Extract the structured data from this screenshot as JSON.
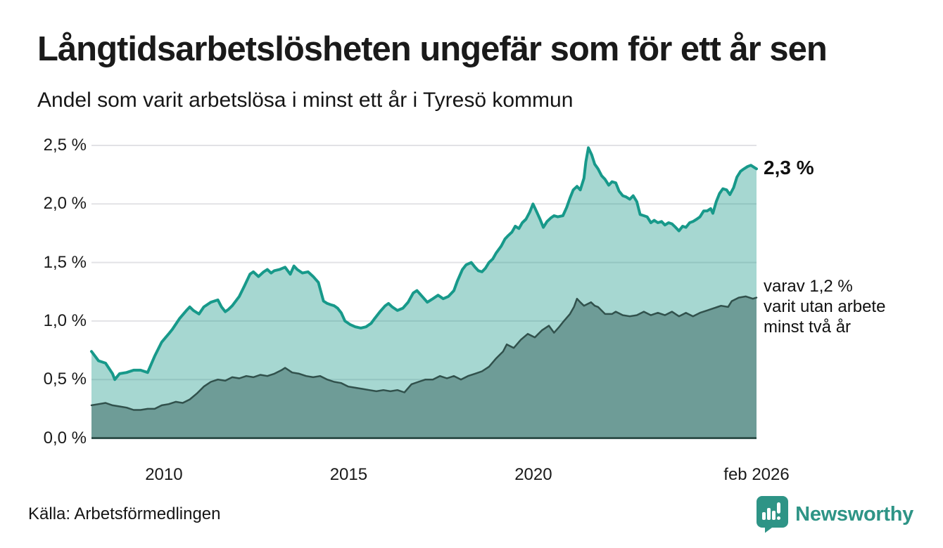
{
  "header": {
    "title": "Långtidsarbetslösheten ungefär som för ett år sen",
    "subtitle": "Andel som varit arbetslösa i minst ett år i Tyresö kommun"
  },
  "annotations": {
    "latest": "2,3 %",
    "secondary_lines": [
      "varav 1,2 %",
      "varit utan arbete",
      "minst två år"
    ]
  },
  "footer": {
    "source": "Källa: Arbetsförmedlingen",
    "brand": "Newsworthy",
    "brand_color": "#2e9486"
  },
  "chart_data": {
    "type": "area",
    "title": "Långtidsarbetslösheten ungefär som för ett år sen",
    "subtitle": "Andel som varit arbetslösa i minst ett år i Tyresö kommun",
    "unit": "%",
    "grid": "horizontal",
    "legend_position": "right-annotations",
    "xlim": [
      2008.04,
      2026.04
    ],
    "ylim": [
      0,
      2.5
    ],
    "y_ticks": [
      {
        "value": 0.0,
        "label": "0,0 %"
      },
      {
        "value": 0.5,
        "label": "0,5 %"
      },
      {
        "value": 1.0,
        "label": "1,0 %"
      },
      {
        "value": 1.5,
        "label": "1,5 %"
      },
      {
        "value": 2.0,
        "label": "2,0 %"
      },
      {
        "value": 2.5,
        "label": "2,5 %"
      }
    ],
    "x_ticks": [
      {
        "value": 2010,
        "label": "2010"
      },
      {
        "value": 2015,
        "label": "2015"
      },
      {
        "value": 2020,
        "label": "2020"
      },
      {
        "value": 2026.04,
        "label": "feb 2026"
      }
    ],
    "gridline_color": "#e2e2e6",
    "series": [
      {
        "name": "minst ett år",
        "end_value": 2.3,
        "end_label": "2,3 %",
        "color": "#17998a",
        "fill": "rgba(21,150,133,0.38)",
        "points": [
          [
            2008.04,
            0.74
          ],
          [
            2008.23,
            0.66
          ],
          [
            2008.42,
            0.64
          ],
          [
            2008.61,
            0.55
          ],
          [
            2008.67,
            0.5
          ],
          [
            2008.8,
            0.55
          ],
          [
            2008.99,
            0.56
          ],
          [
            2009.18,
            0.58
          ],
          [
            2009.37,
            0.58
          ],
          [
            2009.56,
            0.56
          ],
          [
            2009.75,
            0.7
          ],
          [
            2009.94,
            0.82
          ],
          [
            2010.13,
            0.89
          ],
          [
            2010.23,
            0.93
          ],
          [
            2010.42,
            1.02
          ],
          [
            2010.61,
            1.09
          ],
          [
            2010.7,
            1.12
          ],
          [
            2010.8,
            1.09
          ],
          [
            2010.95,
            1.06
          ],
          [
            2011.08,
            1.12
          ],
          [
            2011.27,
            1.16
          ],
          [
            2011.46,
            1.18
          ],
          [
            2011.56,
            1.12
          ],
          [
            2011.66,
            1.08
          ],
          [
            2011.75,
            1.1
          ],
          [
            2011.85,
            1.13
          ],
          [
            2012.04,
            1.21
          ],
          [
            2012.18,
            1.3
          ],
          [
            2012.33,
            1.4
          ],
          [
            2012.42,
            1.42
          ],
          [
            2012.56,
            1.38
          ],
          [
            2012.7,
            1.42
          ],
          [
            2012.8,
            1.44
          ],
          [
            2012.9,
            1.41
          ],
          [
            2012.99,
            1.43
          ],
          [
            2013.13,
            1.44
          ],
          [
            2013.28,
            1.46
          ],
          [
            2013.42,
            1.4
          ],
          [
            2013.52,
            1.47
          ],
          [
            2013.61,
            1.44
          ],
          [
            2013.75,
            1.41
          ],
          [
            2013.9,
            1.42
          ],
          [
            2014.04,
            1.38
          ],
          [
            2014.18,
            1.33
          ],
          [
            2014.32,
            1.17
          ],
          [
            2014.42,
            1.15
          ],
          [
            2014.51,
            1.14
          ],
          [
            2014.61,
            1.13
          ],
          [
            2014.7,
            1.11
          ],
          [
            2014.8,
            1.07
          ],
          [
            2014.9,
            1.0
          ],
          [
            2015.04,
            0.97
          ],
          [
            2015.18,
            0.95
          ],
          [
            2015.33,
            0.94
          ],
          [
            2015.47,
            0.95
          ],
          [
            2015.61,
            0.98
          ],
          [
            2015.7,
            1.02
          ],
          [
            2015.85,
            1.08
          ],
          [
            2015.99,
            1.13
          ],
          [
            2016.08,
            1.15
          ],
          [
            2016.18,
            1.12
          ],
          [
            2016.32,
            1.09
          ],
          [
            2016.47,
            1.11
          ],
          [
            2016.61,
            1.16
          ],
          [
            2016.75,
            1.24
          ],
          [
            2016.85,
            1.26
          ],
          [
            2016.99,
            1.21
          ],
          [
            2017.13,
            1.16
          ],
          [
            2017.28,
            1.19
          ],
          [
            2017.42,
            1.22
          ],
          [
            2017.56,
            1.19
          ],
          [
            2017.7,
            1.21
          ],
          [
            2017.85,
            1.26
          ],
          [
            2017.94,
            1.34
          ],
          [
            2018.08,
            1.44
          ],
          [
            2018.18,
            1.48
          ],
          [
            2018.32,
            1.5
          ],
          [
            2018.42,
            1.46
          ],
          [
            2018.51,
            1.43
          ],
          [
            2018.61,
            1.42
          ],
          [
            2018.7,
            1.45
          ],
          [
            2018.8,
            1.5
          ],
          [
            2018.9,
            1.53
          ],
          [
            2018.99,
            1.58
          ],
          [
            2019.13,
            1.64
          ],
          [
            2019.23,
            1.7
          ],
          [
            2019.32,
            1.73
          ],
          [
            2019.42,
            1.76
          ],
          [
            2019.51,
            1.81
          ],
          [
            2019.61,
            1.79
          ],
          [
            2019.7,
            1.84
          ],
          [
            2019.8,
            1.87
          ],
          [
            2019.9,
            1.93
          ],
          [
            2019.99,
            2.0
          ],
          [
            2020.08,
            1.94
          ],
          [
            2020.18,
            1.87
          ],
          [
            2020.27,
            1.8
          ],
          [
            2020.37,
            1.85
          ],
          [
            2020.47,
            1.88
          ],
          [
            2020.56,
            1.9
          ],
          [
            2020.66,
            1.89
          ],
          [
            2020.8,
            1.9
          ],
          [
            2020.9,
            1.97
          ],
          [
            2020.99,
            2.05
          ],
          [
            2021.08,
            2.12
          ],
          [
            2021.18,
            2.15
          ],
          [
            2021.27,
            2.12
          ],
          [
            2021.37,
            2.22
          ],
          [
            2021.42,
            2.36
          ],
          [
            2021.49,
            2.48
          ],
          [
            2021.58,
            2.42
          ],
          [
            2021.66,
            2.34
          ],
          [
            2021.75,
            2.3
          ],
          [
            2021.85,
            2.24
          ],
          [
            2021.94,
            2.21
          ],
          [
            2022.04,
            2.16
          ],
          [
            2022.13,
            2.19
          ],
          [
            2022.23,
            2.18
          ],
          [
            2022.32,
            2.11
          ],
          [
            2022.42,
            2.07
          ],
          [
            2022.51,
            2.06
          ],
          [
            2022.61,
            2.04
          ],
          [
            2022.7,
            2.07
          ],
          [
            2022.8,
            2.02
          ],
          [
            2022.89,
            1.91
          ],
          [
            2022.99,
            1.9
          ],
          [
            2023.08,
            1.89
          ],
          [
            2023.18,
            1.84
          ],
          [
            2023.27,
            1.86
          ],
          [
            2023.37,
            1.84
          ],
          [
            2023.47,
            1.85
          ],
          [
            2023.56,
            1.82
          ],
          [
            2023.66,
            1.84
          ],
          [
            2023.75,
            1.83
          ],
          [
            2023.85,
            1.8
          ],
          [
            2023.94,
            1.77
          ],
          [
            2024.04,
            1.81
          ],
          [
            2024.13,
            1.8
          ],
          [
            2024.23,
            1.84
          ],
          [
            2024.32,
            1.85
          ],
          [
            2024.42,
            1.87
          ],
          [
            2024.51,
            1.89
          ],
          [
            2024.61,
            1.94
          ],
          [
            2024.7,
            1.94
          ],
          [
            2024.8,
            1.96
          ],
          [
            2024.86,
            1.92
          ],
          [
            2024.95,
            2.02
          ],
          [
            2025.04,
            2.09
          ],
          [
            2025.13,
            2.13
          ],
          [
            2025.23,
            2.12
          ],
          [
            2025.32,
            2.08
          ],
          [
            2025.42,
            2.14
          ],
          [
            2025.51,
            2.23
          ],
          [
            2025.61,
            2.28
          ],
          [
            2025.7,
            2.3
          ],
          [
            2025.8,
            2.32
          ],
          [
            2025.89,
            2.33
          ],
          [
            2025.99,
            2.31
          ],
          [
            2026.04,
            2.3
          ]
        ]
      },
      {
        "name": "minst två år",
        "end_value": 1.2,
        "end_label": "varav 1,2 % varit utan arbete minst två år",
        "color": "#31514c",
        "fill": "#6e9c97",
        "points": [
          [
            2008.04,
            0.28
          ],
          [
            2008.23,
            0.29
          ],
          [
            2008.42,
            0.3
          ],
          [
            2008.61,
            0.28
          ],
          [
            2008.8,
            0.27
          ],
          [
            2008.99,
            0.26
          ],
          [
            2009.18,
            0.24
          ],
          [
            2009.37,
            0.24
          ],
          [
            2009.56,
            0.25
          ],
          [
            2009.75,
            0.25
          ],
          [
            2009.94,
            0.28
          ],
          [
            2010.13,
            0.29
          ],
          [
            2010.32,
            0.31
          ],
          [
            2010.51,
            0.3
          ],
          [
            2010.7,
            0.33
          ],
          [
            2010.89,
            0.38
          ],
          [
            2011.08,
            0.44
          ],
          [
            2011.27,
            0.48
          ],
          [
            2011.46,
            0.5
          ],
          [
            2011.66,
            0.49
          ],
          [
            2011.85,
            0.52
          ],
          [
            2012.04,
            0.51
          ],
          [
            2012.23,
            0.53
          ],
          [
            2012.42,
            0.52
          ],
          [
            2012.61,
            0.54
          ],
          [
            2012.8,
            0.53
          ],
          [
            2012.99,
            0.55
          ],
          [
            2013.18,
            0.58
          ],
          [
            2013.28,
            0.6
          ],
          [
            2013.47,
            0.56
          ],
          [
            2013.66,
            0.55
          ],
          [
            2013.85,
            0.53
          ],
          [
            2014.04,
            0.52
          ],
          [
            2014.23,
            0.53
          ],
          [
            2014.42,
            0.5
          ],
          [
            2014.61,
            0.48
          ],
          [
            2014.8,
            0.47
          ],
          [
            2014.99,
            0.44
          ],
          [
            2015.18,
            0.43
          ],
          [
            2015.37,
            0.42
          ],
          [
            2015.56,
            0.41
          ],
          [
            2015.75,
            0.4
          ],
          [
            2015.94,
            0.41
          ],
          [
            2016.13,
            0.4
          ],
          [
            2016.32,
            0.41
          ],
          [
            2016.51,
            0.39
          ],
          [
            2016.7,
            0.46
          ],
          [
            2016.89,
            0.48
          ],
          [
            2017.08,
            0.5
          ],
          [
            2017.28,
            0.5
          ],
          [
            2017.47,
            0.53
          ],
          [
            2017.66,
            0.51
          ],
          [
            2017.85,
            0.53
          ],
          [
            2018.04,
            0.5
          ],
          [
            2018.23,
            0.53
          ],
          [
            2018.42,
            0.55
          ],
          [
            2018.61,
            0.57
          ],
          [
            2018.8,
            0.61
          ],
          [
            2018.99,
            0.68
          ],
          [
            2019.18,
            0.74
          ],
          [
            2019.28,
            0.8
          ],
          [
            2019.47,
            0.77
          ],
          [
            2019.66,
            0.84
          ],
          [
            2019.85,
            0.89
          ],
          [
            2020.04,
            0.86
          ],
          [
            2020.23,
            0.92
          ],
          [
            2020.42,
            0.96
          ],
          [
            2020.56,
            0.9
          ],
          [
            2020.7,
            0.95
          ],
          [
            2020.8,
            0.99
          ],
          [
            2020.99,
            1.06
          ],
          [
            2021.1,
            1.12
          ],
          [
            2021.18,
            1.19
          ],
          [
            2021.27,
            1.16
          ],
          [
            2021.37,
            1.13
          ],
          [
            2021.56,
            1.16
          ],
          [
            2021.66,
            1.13
          ],
          [
            2021.75,
            1.12
          ],
          [
            2021.94,
            1.06
          ],
          [
            2022.13,
            1.06
          ],
          [
            2022.23,
            1.08
          ],
          [
            2022.42,
            1.05
          ],
          [
            2022.61,
            1.04
          ],
          [
            2022.8,
            1.05
          ],
          [
            2022.99,
            1.08
          ],
          [
            2023.18,
            1.05
          ],
          [
            2023.37,
            1.07
          ],
          [
            2023.56,
            1.05
          ],
          [
            2023.75,
            1.08
          ],
          [
            2023.94,
            1.04
          ],
          [
            2024.13,
            1.07
          ],
          [
            2024.32,
            1.04
          ],
          [
            2024.51,
            1.07
          ],
          [
            2024.7,
            1.09
          ],
          [
            2024.89,
            1.11
          ],
          [
            2025.08,
            1.13
          ],
          [
            2025.27,
            1.12
          ],
          [
            2025.37,
            1.17
          ],
          [
            2025.56,
            1.2
          ],
          [
            2025.75,
            1.21
          ],
          [
            2025.94,
            1.19
          ],
          [
            2026.04,
            1.2
          ]
        ]
      }
    ]
  }
}
